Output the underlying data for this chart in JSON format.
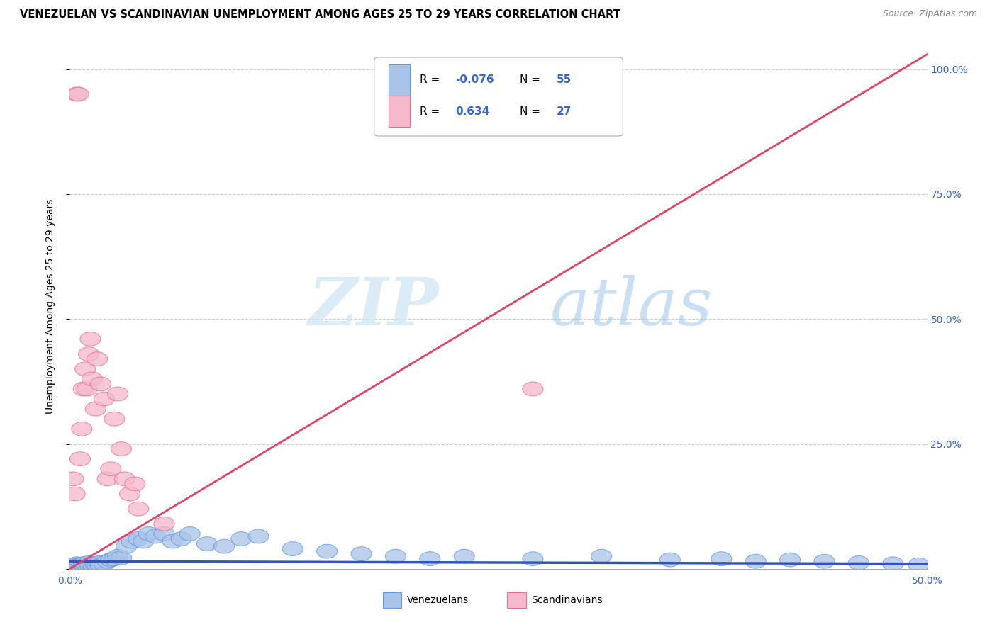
{
  "title": "VENEZUELAN VS SCANDINAVIAN UNEMPLOYMENT AMONG AGES 25 TO 29 YEARS CORRELATION CHART",
  "source": "Source: ZipAtlas.com",
  "ylabel": "Unemployment Among Ages 25 to 29 years",
  "xlim": [
    0.0,
    0.5
  ],
  "ylim": [
    0.0,
    1.05
  ],
  "xtick_positions": [
    0.0,
    0.5
  ],
  "xtick_labels": [
    "0.0%",
    "50.0%"
  ],
  "ytick_positions": [
    0.0,
    0.25,
    0.5,
    0.75,
    1.0
  ],
  "ytick_labels": [
    "",
    "25.0%",
    "50.0%",
    "75.0%",
    "100.0%"
  ],
  "venezuelan_color": "#aac4e8",
  "scandinavian_color": "#f5b8cb",
  "venezuelan_edge_color": "#6699dd",
  "scandinavian_edge_color": "#e87090",
  "venezuelan_line_color": "#3355bb",
  "scandinavian_line_color": "#dd4466",
  "r_venezuelan": -0.076,
  "n_venezuelan": 55,
  "r_scandinavian": 0.634,
  "n_scandinavian": 27,
  "watermark_zip": "ZIP",
  "watermark_atlas": "atlas",
  "legend_venezuelans": "Venezuelans",
  "legend_scandinavians": "Scandinavians",
  "grid_color": "#cccccc",
  "venezuelan_x": [
    0.001,
    0.002,
    0.003,
    0.004,
    0.005,
    0.006,
    0.007,
    0.007,
    0.008,
    0.009,
    0.01,
    0.011,
    0.012,
    0.013,
    0.014,
    0.015,
    0.016,
    0.017,
    0.018,
    0.02,
    0.022,
    0.024,
    0.026,
    0.028,
    0.03,
    0.033,
    0.036,
    0.04,
    0.043,
    0.046,
    0.05,
    0.055,
    0.06,
    0.065,
    0.07,
    0.08,
    0.09,
    0.1,
    0.11,
    0.13,
    0.15,
    0.17,
    0.19,
    0.21,
    0.23,
    0.27,
    0.31,
    0.35,
    0.38,
    0.4,
    0.42,
    0.44,
    0.46,
    0.48,
    0.495
  ],
  "venezuelan_y": [
    0.005,
    0.008,
    0.006,
    0.01,
    0.007,
    0.009,
    0.006,
    0.008,
    0.01,
    0.005,
    0.008,
    0.012,
    0.007,
    0.009,
    0.006,
    0.01,
    0.008,
    0.012,
    0.007,
    0.01,
    0.015,
    0.018,
    0.02,
    0.025,
    0.022,
    0.045,
    0.055,
    0.06,
    0.055,
    0.07,
    0.065,
    0.07,
    0.055,
    0.06,
    0.07,
    0.05,
    0.045,
    0.06,
    0.065,
    0.04,
    0.035,
    0.03,
    0.025,
    0.02,
    0.025,
    0.02,
    0.025,
    0.018,
    0.02,
    0.015,
    0.018,
    0.015,
    0.012,
    0.01,
    0.008
  ],
  "scandinavian_x": [
    0.002,
    0.003,
    0.004,
    0.005,
    0.006,
    0.007,
    0.008,
    0.009,
    0.01,
    0.011,
    0.012,
    0.013,
    0.015,
    0.016,
    0.018,
    0.02,
    0.022,
    0.024,
    0.026,
    0.028,
    0.03,
    0.032,
    0.035,
    0.038,
    0.04,
    0.055,
    0.27
  ],
  "scandinavian_y": [
    0.18,
    0.15,
    0.95,
    0.95,
    0.22,
    0.28,
    0.36,
    0.4,
    0.36,
    0.43,
    0.46,
    0.38,
    0.32,
    0.42,
    0.37,
    0.34,
    0.18,
    0.2,
    0.3,
    0.35,
    0.24,
    0.18,
    0.15,
    0.17,
    0.12,
    0.09,
    0.36
  ],
  "scan_line_x0": 0.0,
  "scan_line_y0": 0.0,
  "scan_line_x1": 0.5,
  "scan_line_y1": 1.03,
  "ven_line_x0": 0.0,
  "ven_line_y0": 0.015,
  "ven_line_x1": 0.5,
  "ven_line_y1": 0.01
}
